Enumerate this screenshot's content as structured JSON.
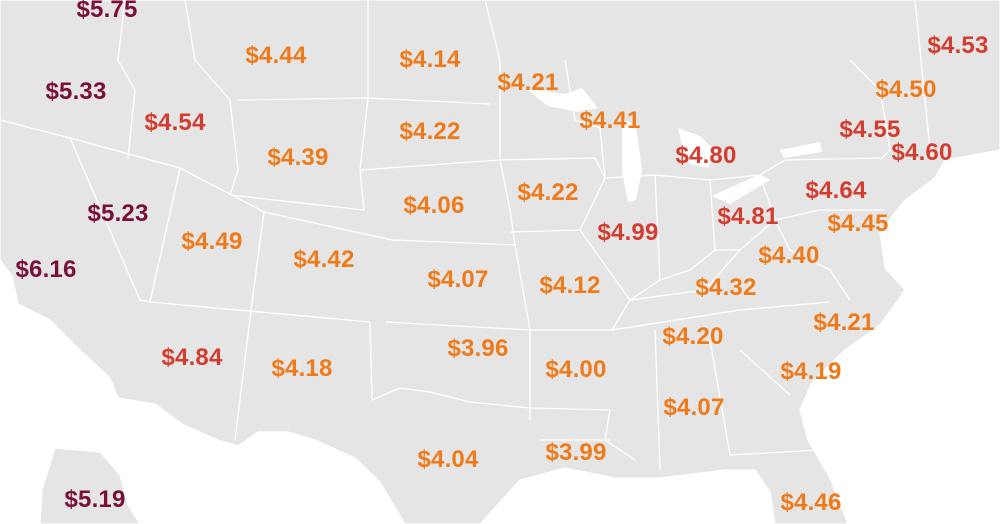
{
  "map": {
    "colors": {
      "high": "#7a0f3a",
      "mid": "#d23d2f",
      "low": "#ee7a1a",
      "land": "#e5e5e5",
      "border": "#ffffff"
    },
    "labels": [
      {
        "id": "wa",
        "value": "$5.75",
        "tier": "high"
      },
      {
        "id": "or",
        "value": "$5.33",
        "tier": "high"
      },
      {
        "id": "ca",
        "value": "$6.16",
        "tier": "high"
      },
      {
        "id": "nv",
        "value": "$5.23",
        "tier": "high"
      },
      {
        "id": "id",
        "value": "$4.54",
        "tier": "mid"
      },
      {
        "id": "mt",
        "value": "$4.44",
        "tier": "low"
      },
      {
        "id": "wy",
        "value": "$4.39",
        "tier": "low"
      },
      {
        "id": "ut",
        "value": "$4.49",
        "tier": "low"
      },
      {
        "id": "az",
        "value": "$4.84",
        "tier": "mid"
      },
      {
        "id": "co",
        "value": "$4.42",
        "tier": "low"
      },
      {
        "id": "nm",
        "value": "$4.18",
        "tier": "low"
      },
      {
        "id": "nd",
        "value": "$4.14",
        "tier": "low"
      },
      {
        "id": "sd",
        "value": "$4.22",
        "tier": "low"
      },
      {
        "id": "ne",
        "value": "$4.06",
        "tier": "low"
      },
      {
        "id": "ks",
        "value": "$4.07",
        "tier": "low"
      },
      {
        "id": "ok",
        "value": "$3.96",
        "tier": "low"
      },
      {
        "id": "tx",
        "value": "$4.04",
        "tier": "low"
      },
      {
        "id": "mn",
        "value": "$4.21",
        "tier": "low"
      },
      {
        "id": "ia",
        "value": "$4.22",
        "tier": "low"
      },
      {
        "id": "mo",
        "value": "$4.12",
        "tier": "low"
      },
      {
        "id": "ar",
        "value": "$4.00",
        "tier": "low"
      },
      {
        "id": "la",
        "value": "$3.99",
        "tier": "low"
      },
      {
        "id": "wi",
        "value": "$4.41",
        "tier": "low"
      },
      {
        "id": "il",
        "value": "$4.99",
        "tier": "mid"
      },
      {
        "id": "mi",
        "value": "$4.80",
        "tier": "mid"
      },
      {
        "id": "in",
        "value": "$4.81",
        "tier": "mid"
      },
      {
        "id": "oh",
        "value": "$4.64",
        "tier": "mid"
      },
      {
        "id": "ky",
        "value": "$4.32",
        "tier": "low"
      },
      {
        "id": "tn",
        "value": "$4.20",
        "tier": "low"
      },
      {
        "id": "ms",
        "value": "$4.07",
        "tier": "low"
      },
      {
        "id": "wv",
        "value": "$4.40",
        "tier": "low"
      },
      {
        "id": "va",
        "value": "$4.45",
        "tier": "low"
      },
      {
        "id": "nc",
        "value": "$4.21",
        "tier": "low"
      },
      {
        "id": "sc",
        "value": "$4.19",
        "tier": "low"
      },
      {
        "id": "fl",
        "value": "$4.46",
        "tier": "low"
      },
      {
        "id": "ny",
        "value": "$4.55",
        "tier": "mid"
      },
      {
        "id": "pa",
        "value": "$4.60",
        "tier": "mid"
      },
      {
        "id": "vt",
        "value": "$4.50",
        "tier": "low"
      },
      {
        "id": "me",
        "value": "$4.53",
        "tier": "mid"
      },
      {
        "id": "ak",
        "value": "$5.19",
        "tier": "high"
      }
    ]
  }
}
